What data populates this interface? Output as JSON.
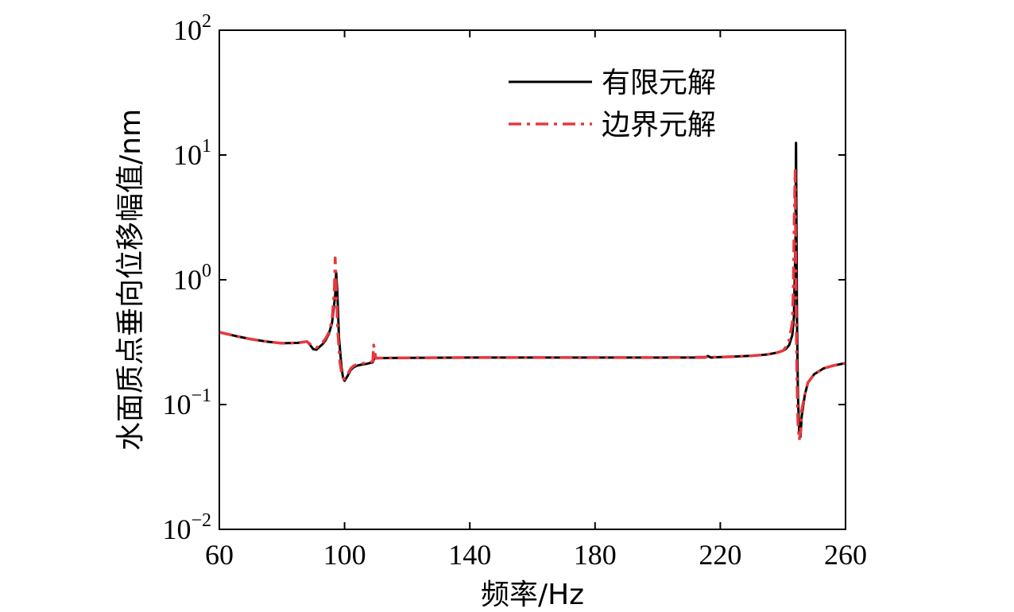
{
  "chart_data": {
    "type": "line",
    "title": "",
    "xlabel": "频率/Hz",
    "ylabel": "水面质点垂向位移幅值/nm",
    "xlim": [
      60,
      260
    ],
    "ylim": [
      0.01,
      100
    ],
    "yscale": "log",
    "xticks": [
      "60",
      "100",
      "140",
      "180",
      "220",
      "260"
    ],
    "yticks": [
      {
        "base": "10",
        "exp": "−2"
      },
      {
        "base": "10",
        "exp": "−1"
      },
      {
        "base": "10",
        "exp": "0"
      },
      {
        "base": "10",
        "exp": "1"
      },
      {
        "base": "10",
        "exp": "2"
      }
    ],
    "legend_position": "top-right",
    "grid": false,
    "series": [
      {
        "name": "有限元解",
        "color": "#000000",
        "style": "solid",
        "x": [
          60,
          65,
          70,
          75,
          80,
          85,
          88,
          89,
          90,
          91,
          92,
          93,
          94,
          95,
          96,
          97,
          97.3,
          97.7,
          98.2,
          99,
          99.5,
          100,
          101,
          102,
          103,
          104,
          105,
          106,
          107,
          108,
          109,
          109.5,
          110,
          111,
          120,
          140,
          160,
          180,
          200,
          215,
          216,
          217,
          220,
          225,
          230,
          235,
          238,
          240,
          241,
          242,
          243,
          243.5,
          244,
          244.2,
          244.5,
          244.8,
          245.2,
          245.6,
          246,
          247,
          248,
          250,
          253,
          256,
          260
        ],
        "values": [
          0.38,
          0.355,
          0.335,
          0.32,
          0.31,
          0.312,
          0.32,
          0.3,
          0.278,
          0.275,
          0.29,
          0.305,
          0.33,
          0.37,
          0.45,
          0.75,
          1.15,
          0.8,
          0.35,
          0.2,
          0.165,
          0.155,
          0.17,
          0.19,
          0.2,
          0.205,
          0.208,
          0.21,
          0.212,
          0.215,
          0.218,
          0.235,
          0.235,
          0.236,
          0.237,
          0.238,
          0.238,
          0.238,
          0.238,
          0.238,
          0.245,
          0.238,
          0.24,
          0.243,
          0.246,
          0.252,
          0.26,
          0.27,
          0.28,
          0.3,
          0.36,
          0.5,
          2.0,
          12.5,
          0.5,
          0.12,
          0.06,
          0.055,
          0.08,
          0.12,
          0.15,
          0.175,
          0.195,
          0.205,
          0.215
        ]
      },
      {
        "name": "边界元解",
        "color": "#e8383d",
        "style": "dash-dot",
        "x": [
          60,
          65,
          70,
          75,
          80,
          85,
          88,
          89,
          90,
          91,
          92,
          93,
          94,
          95,
          96,
          96.7,
          97,
          97.3,
          97.8,
          98.5,
          99,
          99.5,
          100,
          101,
          102,
          103,
          104,
          105,
          106,
          107,
          108,
          109,
          109.3,
          109.7,
          110,
          111,
          120,
          140,
          160,
          180,
          200,
          220,
          225,
          230,
          235,
          238,
          240,
          241,
          242,
          243,
          243.3,
          243.6,
          243.9,
          244.2,
          244.5,
          244.8,
          245.2,
          245.6,
          246,
          247,
          248,
          250,
          253,
          256,
          260
        ],
        "values": [
          0.38,
          0.355,
          0.335,
          0.32,
          0.31,
          0.312,
          0.32,
          0.305,
          0.29,
          0.285,
          0.3,
          0.315,
          0.34,
          0.38,
          0.47,
          0.8,
          1.5,
          0.9,
          0.4,
          0.22,
          0.18,
          0.165,
          0.16,
          0.175,
          0.195,
          0.205,
          0.21,
          0.212,
          0.214,
          0.216,
          0.218,
          0.222,
          0.3,
          0.26,
          0.235,
          0.236,
          0.237,
          0.238,
          0.238,
          0.238,
          0.238,
          0.24,
          0.243,
          0.246,
          0.252,
          0.26,
          0.27,
          0.29,
          0.33,
          0.45,
          0.8,
          3.0,
          7.5,
          0.7,
          0.15,
          0.07,
          0.052,
          0.06,
          0.09,
          0.12,
          0.15,
          0.175,
          0.195,
          0.205,
          0.215
        ]
      }
    ]
  }
}
